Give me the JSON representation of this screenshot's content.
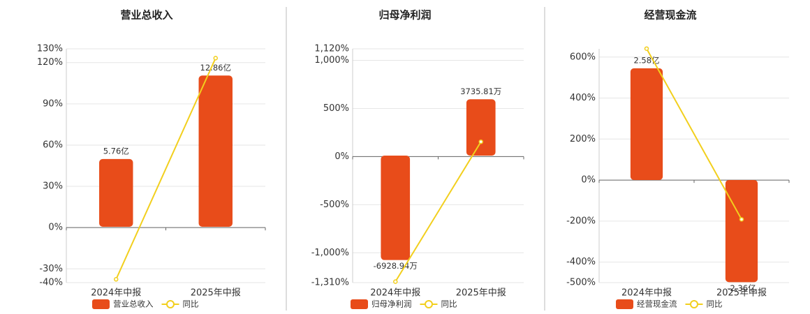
{
  "chart_data": [
    {
      "type": "bar",
      "title": "营业总收入",
      "categories": [
        "2024年中报",
        "2025年中报"
      ],
      "series": [
        {
          "name": "营业总收入",
          "type": "bar",
          "axis": "y2",
          "color": "#e84c1a",
          "values": [
            5.76,
            12.86
          ],
          "value_labels": [
            "5.76亿",
            "12.86亿"
          ]
        },
        {
          "name": "同比",
          "type": "line",
          "color": "#f2cf1d",
          "values": [
            -37.6,
            123.26
          ]
        }
      ],
      "ylim": [
        -40,
        130
      ],
      "yticks": [
        {
          "value": -40,
          "label": "-40%"
        },
        {
          "value": -30,
          "label": "-30%"
        },
        {
          "value": 0,
          "label": "0%"
        },
        {
          "value": 30,
          "label": "30%"
        },
        {
          "value": 60,
          "label": "60%"
        },
        {
          "value": 90,
          "label": "90%"
        },
        {
          "value": 120,
          "label": "120%"
        },
        {
          "value": 130,
          "label": "130%"
        }
      ],
      "y2lim": [
        -4.75,
        15.13
      ],
      "grid": true,
      "legend": "bottom"
    },
    {
      "type": "bar",
      "title": "归母净利润",
      "categories": [
        "2024年中报",
        "2025年中报"
      ],
      "series": [
        {
          "name": "归母净利润",
          "type": "bar",
          "axis": "y2",
          "color": "#e84c1a",
          "values": [
            -6928.94,
            3735.81
          ],
          "value_labels": [
            "-6928.94万",
            "3735.81万"
          ]
        },
        {
          "name": "同比",
          "type": "line",
          "color": "#f2cf1d",
          "values": [
            -1300,
            153.92
          ]
        }
      ],
      "ylim": [
        -1310,
        1120
      ],
      "yticks": [
        {
          "value": -1310,
          "label": "-1,310%"
        },
        {
          "value": -1000,
          "label": "-1,000%"
        },
        {
          "value": -500,
          "label": "-500%"
        },
        {
          "value": 0,
          "label": "0%"
        },
        {
          "value": 500,
          "label": "500%"
        },
        {
          "value": 1000,
          "label": "1,000%"
        },
        {
          "value": 1120,
          "label": "1,120%"
        }
      ],
      "y2lim": [
        -8426,
        7083
      ],
      "grid": true,
      "legend": "bottom"
    },
    {
      "type": "bar",
      "title": "经营现金流",
      "categories": [
        "2024年中报",
        "2025年中报"
      ],
      "series": [
        {
          "name": "经营现金流",
          "type": "bar",
          "axis": "y2",
          "color": "#e84c1a",
          "values": [
            2.58,
            -2.36
          ],
          "value_labels": [
            "2.58亿",
            "-2.36亿"
          ]
        },
        {
          "name": "同比",
          "type": "line",
          "color": "#f2cf1d",
          "values": [
            641,
            -191.47
          ]
        }
      ],
      "ylim": [
        -500,
        640
      ],
      "yticks": [
        {
          "value": -500,
          "label": "-500%"
        },
        {
          "value": -400,
          "label": "-400%"
        },
        {
          "value": -200,
          "label": "-200%"
        },
        {
          "value": 0,
          "label": "0%"
        },
        {
          "value": 200,
          "label": "200%"
        },
        {
          "value": 400,
          "label": "400%"
        },
        {
          "value": 600,
          "label": "600%"
        }
      ],
      "y2lim": [
        -2.37,
        3.03
      ],
      "grid": true,
      "legend": "bottom"
    }
  ]
}
